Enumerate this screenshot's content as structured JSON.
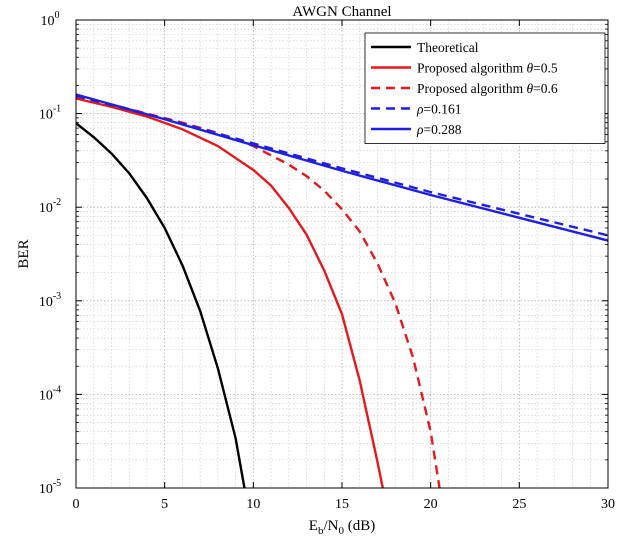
{
  "chart_data": {
    "type": "line",
    "title": "AWGN Channel",
    "xlabel": {
      "main": "E",
      "sub1": "b",
      "mid": "/N",
      "sub2": "0",
      "tail": " (dB)"
    },
    "ylabel": "BER",
    "xlim": [
      0,
      30
    ],
    "ylim": [
      1e-05,
      1
    ],
    "yscale": "log",
    "grid": true,
    "minor_grid": true,
    "legend_position": "top-right",
    "x_ticks": [
      {
        "value": 0,
        "label": "0"
      },
      {
        "value": 5,
        "label": "5"
      },
      {
        "value": 10,
        "label": "10"
      },
      {
        "value": 15,
        "label": "15"
      },
      {
        "value": 20,
        "label": "20"
      },
      {
        "value": 25,
        "label": "25"
      },
      {
        "value": 30,
        "label": "30"
      }
    ],
    "y_ticks": [
      {
        "value": 1e-05,
        "base": "10",
        "exp": "-5"
      },
      {
        "value": 0.0001,
        "base": "10",
        "exp": "-4"
      },
      {
        "value": 0.001,
        "base": "10",
        "exp": "-3"
      },
      {
        "value": 0.01,
        "base": "10",
        "exp": "-2"
      },
      {
        "value": 0.1,
        "base": "10",
        "exp": "-1"
      },
      {
        "value": 1,
        "base": "10",
        "exp": "0"
      }
    ],
    "series": [
      {
        "name": "Theoretical",
        "legend_parts": [
          {
            "t": "Theoretical",
            "i": false
          }
        ],
        "color": "#000000",
        "dashed": false,
        "x": [
          0,
          1,
          2,
          3,
          4,
          5,
          6,
          7,
          8,
          9,
          9.5
        ],
        "y": [
          0.079,
          0.056,
          0.0375,
          0.023,
          0.0125,
          0.006,
          0.0024,
          0.00078,
          0.00019,
          3.4e-05,
          1e-05
        ]
      },
      {
        "name": "Proposed algorithm θ=0.5",
        "legend_parts": [
          {
            "t": "Proposed algorithm ",
            "i": false
          },
          {
            "t": "θ",
            "i": true
          },
          {
            "t": "=0.5",
            "i": false
          }
        ],
        "color": "#e31a1c",
        "dashed": false,
        "x": [
          0,
          2,
          4,
          6,
          8,
          10,
          11,
          12,
          13,
          14,
          15,
          16,
          17,
          17.3
        ],
        "y": [
          0.145,
          0.118,
          0.093,
          0.068,
          0.045,
          0.025,
          0.017,
          0.0098,
          0.0051,
          0.0021,
          0.00072,
          0.00014,
          1.9e-05,
          1e-05
        ]
      },
      {
        "name": "Proposed algorithm θ=0.6",
        "legend_parts": [
          {
            "t": "Proposed algorithm ",
            "i": false
          },
          {
            "t": "θ",
            "i": true
          },
          {
            "t": "=0.6",
            "i": false
          }
        ],
        "color": "#e31a1c",
        "dashed": true,
        "x": [
          0,
          2,
          4,
          6,
          8,
          10,
          12,
          13,
          14,
          15,
          16,
          17,
          18,
          19,
          20,
          20.5
        ],
        "y": [
          0.15,
          0.125,
          0.1,
          0.08,
          0.062,
          0.045,
          0.0285,
          0.0215,
          0.015,
          0.0095,
          0.0055,
          0.0025,
          0.00095,
          0.00025,
          4e-05,
          1e-05
        ]
      },
      {
        "name": "ρ=0.161",
        "legend_parts": [
          {
            "t": "ρ",
            "i": true
          },
          {
            "t": "=0.161",
            "i": false
          }
        ],
        "color": "#1f1fe0",
        "dashed": true,
        "x": [
          0,
          5,
          10,
          15,
          20,
          25,
          30
        ],
        "y": [
          0.155,
          0.088,
          0.048,
          0.026,
          0.0145,
          0.0085,
          0.005
        ]
      },
      {
        "name": "ρ=0.288",
        "legend_parts": [
          {
            "t": "ρ",
            "i": true
          },
          {
            "t": "=0.288",
            "i": false
          }
        ],
        "color": "#1f1fe0",
        "dashed": false,
        "x": [
          0,
          5,
          10,
          15,
          20,
          25,
          30
        ],
        "y": [
          0.16,
          0.087,
          0.046,
          0.0245,
          0.0135,
          0.0077,
          0.0044
        ]
      }
    ]
  }
}
